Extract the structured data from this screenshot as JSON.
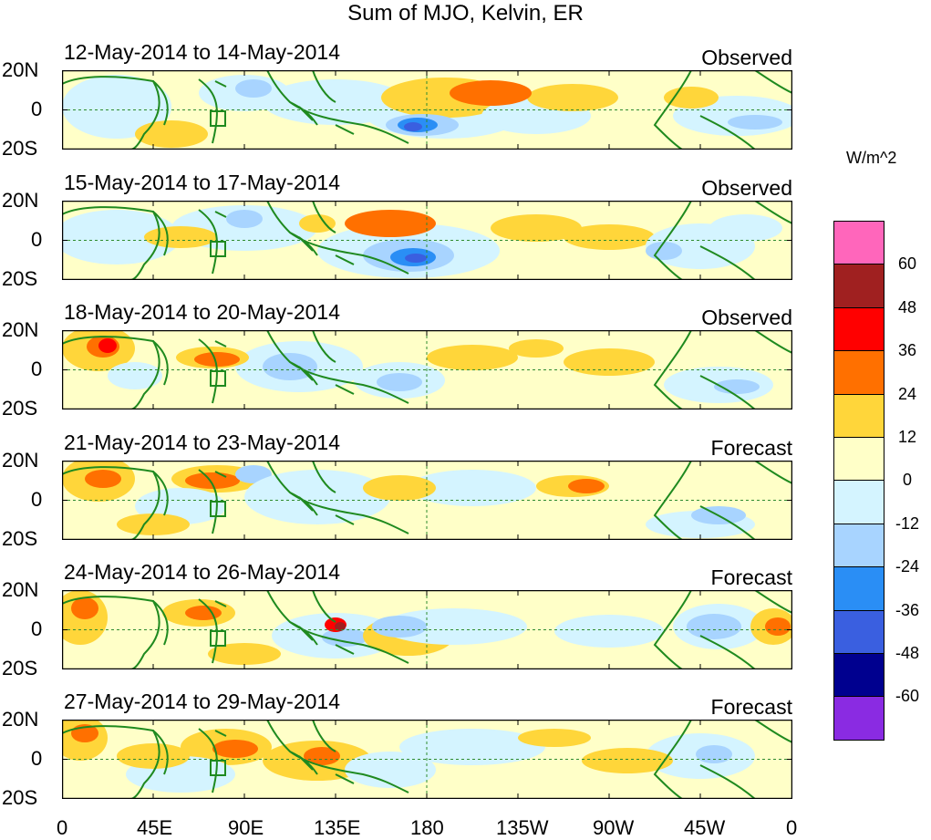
{
  "title": "Sum of MJO, Kelvin, ER",
  "panels": [
    {
      "date_range": "12-May-2014 to 14-May-2014",
      "status": "Observed"
    },
    {
      "date_range": "15-May-2014 to 17-May-2014",
      "status": "Observed"
    },
    {
      "date_range": "18-May-2014 to 20-May-2014",
      "status": "Observed"
    },
    {
      "date_range": "21-May-2014 to 23-May-2014",
      "status": "Forecast"
    },
    {
      "date_range": "24-May-2014 to 26-May-2014",
      "status": "Forecast"
    },
    {
      "date_range": "27-May-2014 to 29-May-2014",
      "status": "Forecast"
    }
  ],
  "lat_labels": [
    "20N",
    "0",
    "20S"
  ],
  "lon_labels": [
    "0",
    "45E",
    "90E",
    "135E",
    "180",
    "135W",
    "90W",
    "45W",
    "0"
  ],
  "colorbar": {
    "unit": "W/m^2",
    "labels": [
      "60",
      "48",
      "36",
      "24",
      "12",
      "0",
      "-12",
      "-24",
      "-36",
      "-48",
      "-60"
    ],
    "colors": [
      "#ff66bb",
      "#a02020",
      "#ff0000",
      "#ff7000",
      "#ffd63a",
      "#ffffc8",
      "#d4f4ff",
      "#a8d4ff",
      "#2a8ef5",
      "#3a5fe0",
      "#00008f",
      "#8a2be2"
    ]
  },
  "map_style": {
    "land_outline": "#1f8a1f",
    "guide_line": "#2e8b2e"
  }
}
